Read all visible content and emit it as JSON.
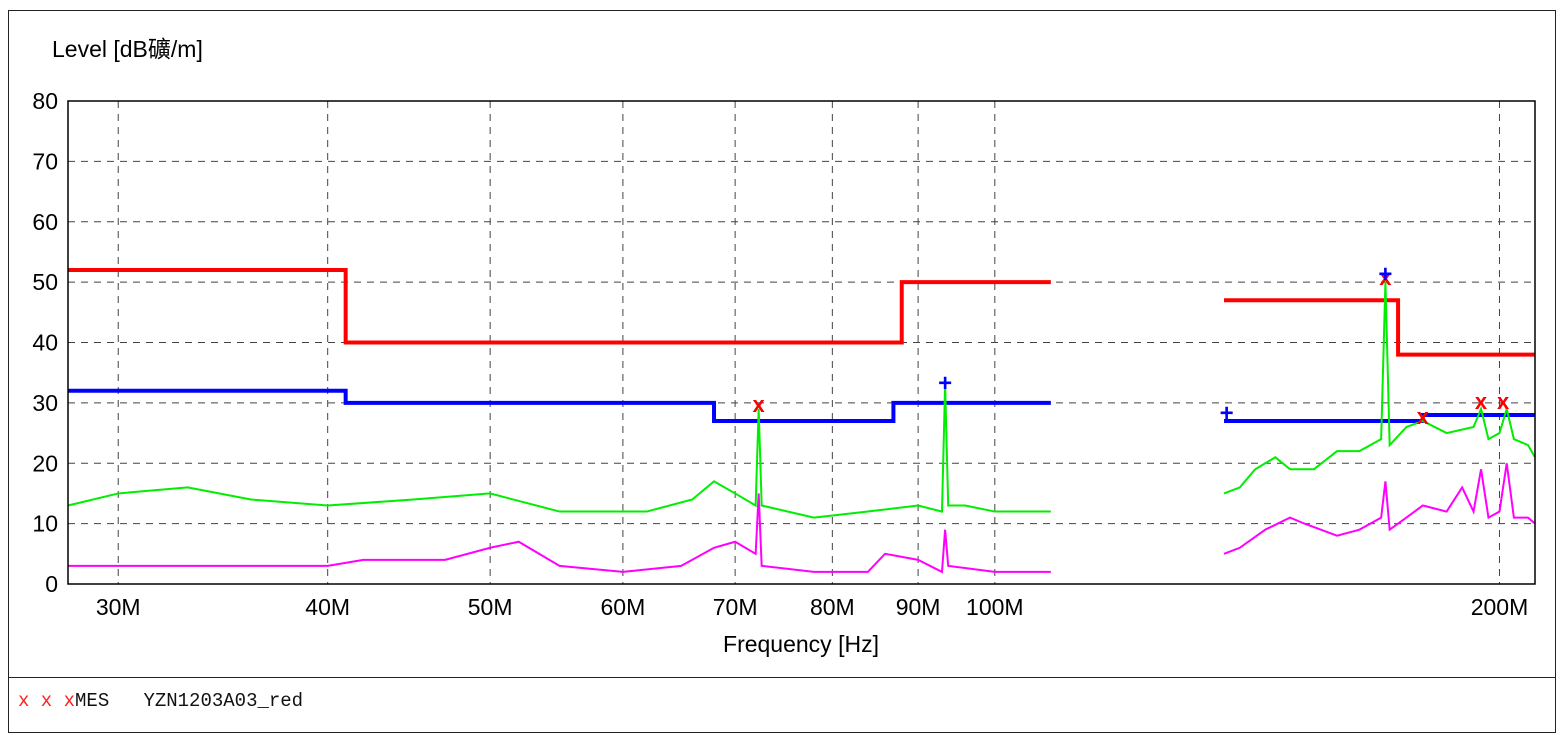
{
  "chart_data": {
    "type": "line",
    "ylabel": "Level [dB礦/m]",
    "xlabel": "Frequency [Hz]",
    "x_scale": "log",
    "xlim": [
      28000000,
      210000000
    ],
    "ylim": [
      0,
      80
    ],
    "grid": true,
    "yticks": [
      "0",
      "10",
      "20",
      "30",
      "40",
      "50",
      "60",
      "70",
      "80"
    ],
    "xticks": [
      {
        "value": 30000000,
        "label": "30M"
      },
      {
        "value": 40000000,
        "label": "40M"
      },
      {
        "value": 50000000,
        "label": "50M"
      },
      {
        "value": 60000000,
        "label": "60M"
      },
      {
        "value": 70000000,
        "label": "70M"
      },
      {
        "value": 80000000,
        "label": "80M"
      },
      {
        "value": 90000000,
        "label": "90M"
      },
      {
        "value": 100000000,
        "label": "100M"
      },
      {
        "value": 200000000,
        "label": "200M"
      }
    ],
    "limit_lines": [
      {
        "color": "#ff0000",
        "segments": [
          [
            [
              28000000,
              52
            ],
            [
              41000000,
              52
            ],
            [
              41000000,
              40
            ],
            [
              88000000,
              40
            ],
            [
              88000000,
              50
            ],
            [
              108000000,
              50
            ]
          ],
          [
            [
              137000000,
              47
            ],
            [
              174000000,
              47
            ],
            [
              174000000,
              38
            ],
            [
              210000000,
              38
            ]
          ]
        ]
      },
      {
        "color": "#0000ff",
        "segments": [
          [
            [
              28000000,
              32
            ],
            [
              41000000,
              32
            ],
            [
              41000000,
              30
            ],
            [
              68000000,
              30
            ],
            [
              68000000,
              27
            ],
            [
              87000000,
              27
            ],
            [
              87000000,
              30
            ],
            [
              108000000,
              30
            ]
          ],
          [
            [
              137000000,
              27
            ],
            [
              180000000,
              27
            ],
            [
              180000000,
              28
            ],
            [
              210000000,
              28
            ]
          ]
        ]
      }
    ],
    "traces": [
      {
        "color": "#00ee00",
        "segments": [
          [
            [
              28000000,
              13
            ],
            [
              30000000,
              15
            ],
            [
              33000000,
              16
            ],
            [
              36000000,
              14
            ],
            [
              40000000,
              13
            ],
            [
              45000000,
              14
            ],
            [
              50000000,
              15
            ],
            [
              55000000,
              12
            ],
            [
              62000000,
              12
            ],
            [
              66000000,
              14
            ],
            [
              68000000,
              17
            ],
            [
              70000000,
              15
            ],
            [
              72000000,
              13
            ],
            [
              72300000,
              29
            ],
            [
              72600000,
              13
            ],
            [
              78000000,
              11
            ],
            [
              84000000,
              12
            ],
            [
              90000000,
              13
            ],
            [
              93000000,
              12
            ],
            [
              93400000,
              33
            ],
            [
              93800000,
              13
            ],
            [
              96000000,
              13
            ],
            [
              100000000,
              12
            ],
            [
              108000000,
              12
            ]
          ],
          [
            [
              137000000,
              15
            ],
            [
              140000000,
              16
            ],
            [
              143000000,
              19
            ],
            [
              147000000,
              21
            ],
            [
              150000000,
              19
            ],
            [
              155000000,
              19
            ],
            [
              160000000,
              22
            ],
            [
              165000000,
              22
            ],
            [
              170000000,
              24
            ],
            [
              171000000,
              50
            ],
            [
              172000000,
              23
            ],
            [
              176000000,
              26
            ],
            [
              180000000,
              27
            ],
            [
              186000000,
              25
            ],
            [
              193000000,
              26
            ],
            [
              195000000,
              29
            ],
            [
              197000000,
              24
            ],
            [
              200000000,
              25
            ],
            [
              202000000,
              29
            ],
            [
              204000000,
              24
            ],
            [
              208000000,
              23
            ],
            [
              210000000,
              21
            ]
          ]
        ]
      },
      {
        "color": "#ff00ff",
        "segments": [
          [
            [
              28000000,
              3
            ],
            [
              35000000,
              3
            ],
            [
              40000000,
              3
            ],
            [
              42000000,
              4
            ],
            [
              47000000,
              4
            ],
            [
              50000000,
              6
            ],
            [
              52000000,
              7
            ],
            [
              55000000,
              3
            ],
            [
              60000000,
              2
            ],
            [
              65000000,
              3
            ],
            [
              68000000,
              6
            ],
            [
              70000000,
              7
            ],
            [
              72000000,
              5
            ],
            [
              72300000,
              15
            ],
            [
              72600000,
              3
            ],
            [
              78000000,
              2
            ],
            [
              84000000,
              2
            ],
            [
              86000000,
              5
            ],
            [
              90000000,
              4
            ],
            [
              93000000,
              2
            ],
            [
              93400000,
              9
            ],
            [
              93800000,
              3
            ],
            [
              100000000,
              2
            ],
            [
              108000000,
              2
            ]
          ],
          [
            [
              137000000,
              5
            ],
            [
              140000000,
              6
            ],
            [
              145000000,
              9
            ],
            [
              150000000,
              11
            ],
            [
              153000000,
              10
            ],
            [
              160000000,
              8
            ],
            [
              165000000,
              9
            ],
            [
              170000000,
              11
            ],
            [
              171000000,
              17
            ],
            [
              172000000,
              9
            ],
            [
              176000000,
              11
            ],
            [
              180000000,
              13
            ],
            [
              186000000,
              12
            ],
            [
              190000000,
              16
            ],
            [
              193000000,
              12
            ],
            [
              195000000,
              19
            ],
            [
              197000000,
              11
            ],
            [
              200000000,
              12
            ],
            [
              202000000,
              20
            ],
            [
              204000000,
              11
            ],
            [
              208000000,
              11
            ],
            [
              210000000,
              10
            ]
          ]
        ]
      }
    ],
    "markers": [
      {
        "x": 72300000,
        "y": 29.5,
        "symbol": "x",
        "color": "#ff0000"
      },
      {
        "x": 171000000,
        "y": 50.5,
        "symbol": "x",
        "color": "#ff0000"
      },
      {
        "x": 180000000,
        "y": 27.5,
        "symbol": "x",
        "color": "#ff0000"
      },
      {
        "x": 195000000,
        "y": 30,
        "symbol": "x",
        "color": "#ff0000"
      },
      {
        "x": 201000000,
        "y": 30,
        "symbol": "x",
        "color": "#ff0000"
      },
      {
        "x": 93400000,
        "y": 33,
        "symbol": "+",
        "color": "#0000ff"
      },
      {
        "x": 171000000,
        "y": 51,
        "symbol": "+",
        "color": "#0000ff"
      },
      {
        "x": 137500000,
        "y": 28,
        "symbol": "+",
        "color": "#0000ff"
      }
    ]
  },
  "legend": {
    "marker": "x x x",
    "label": "MES",
    "file": "YZN1203A03_red"
  }
}
